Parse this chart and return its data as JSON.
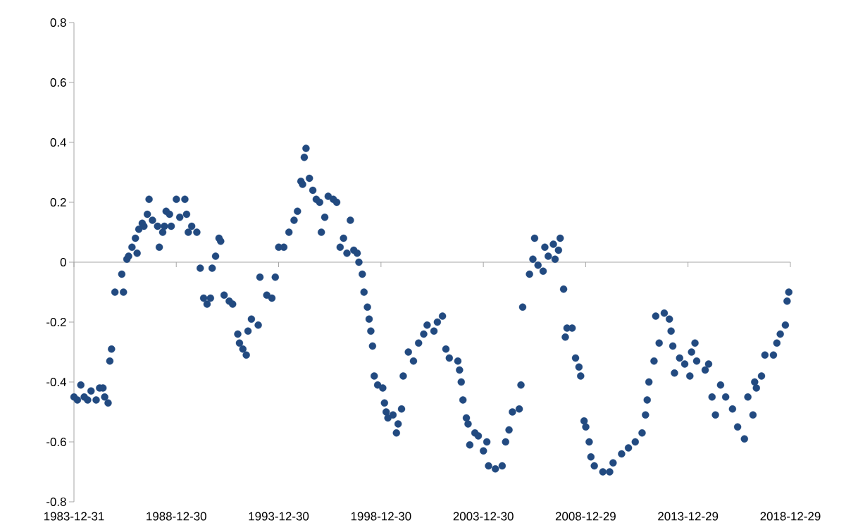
{
  "chart_data": {
    "type": "scatter",
    "color": "#224a80",
    "marker": "circle",
    "x": [
      "1984-01",
      "1984-03",
      "1984-05",
      "1984-07",
      "1984-09",
      "1984-11",
      "1985-02",
      "1985-04",
      "1985-06",
      "1985-07",
      "1985-09",
      "1985-10",
      "1985-11",
      "1986-01",
      "1986-05",
      "1986-06",
      "1986-08",
      "1986-09",
      "1986-11",
      "1987-01",
      "1987-02",
      "1987-03",
      "1987-05",
      "1987-06",
      "1987-08",
      "1987-09",
      "1987-11",
      "1988-02",
      "1988-03",
      "1988-05",
      "1988-06",
      "1988-07",
      "1988-09",
      "1988-10",
      "1989-01",
      "1989-03",
      "1989-06",
      "1989-07",
      "1989-08",
      "1989-10",
      "1990-01",
      "1990-03",
      "1990-05",
      "1990-07",
      "1990-09",
      "1990-10",
      "1990-12",
      "1991-02",
      "1991-03",
      "1991-05",
      "1991-08",
      "1991-10",
      "1992-01",
      "1992-02",
      "1992-04",
      "1992-06",
      "1992-07",
      "1992-09",
      "1993-01",
      "1993-02",
      "1993-06",
      "1993-09",
      "1993-11",
      "1994-01",
      "1994-04",
      "1994-07",
      "1994-10",
      "1994-12",
      "1995-02",
      "1995-03",
      "1995-04",
      "1995-05",
      "1995-07",
      "1995-09",
      "1995-11",
      "1996-01",
      "1996-02",
      "1996-04",
      "1996-06",
      "1996-09",
      "1996-11",
      "1997-01",
      "1997-03",
      "1997-05",
      "1997-07",
      "1997-09",
      "1997-11",
      "1997-12",
      "1998-02",
      "1998-03",
      "1998-05",
      "1998-06",
      "1998-07",
      "1998-08",
      "1998-09",
      "1998-11",
      "1999-02",
      "1999-03",
      "1999-04",
      "1999-05",
      "1999-08",
      "1999-10",
      "1999-11",
      "2000-01",
      "2000-02",
      "2000-05",
      "2000-08",
      "2000-11",
      "2001-02",
      "2001-04",
      "2001-08",
      "2001-10",
      "2002-01",
      "2002-03",
      "2002-05",
      "2002-10",
      "2002-11",
      "2002-12",
      "2003-01",
      "2003-03",
      "2003-04",
      "2003-05",
      "2003-08",
      "2003-10",
      "2004-01",
      "2004-03",
      "2004-04",
      "2004-08",
      "2004-12",
      "2005-02",
      "2005-04",
      "2005-06",
      "2005-10",
      "2005-11",
      "2005-12",
      "2006-04",
      "2006-06",
      "2006-07",
      "2006-09",
      "2006-12",
      "2007-01",
      "2007-03",
      "2007-06",
      "2007-07",
      "2007-09",
      "2007-10",
      "2007-12",
      "2008-01",
      "2008-02",
      "2008-05",
      "2008-07",
      "2008-09",
      "2008-10",
      "2008-12",
      "2009-01",
      "2009-03",
      "2009-04",
      "2009-06",
      "2009-11",
      "2010-03",
      "2010-05",
      "2010-10",
      "2011-02",
      "2011-06",
      "2011-10",
      "2011-12",
      "2012-01",
      "2012-02",
      "2012-05",
      "2012-06",
      "2012-08",
      "2012-11",
      "2013-02",
      "2013-03",
      "2013-04",
      "2013-05",
      "2013-08",
      "2013-11",
      "2014-02",
      "2014-03",
      "2014-05",
      "2014-06",
      "2014-11",
      "2015-01",
      "2015-03",
      "2015-05",
      "2015-08",
      "2015-11",
      "2016-03",
      "2016-06",
      "2016-10",
      "2016-12",
      "2017-03",
      "2017-04",
      "2017-05",
      "2017-08",
      "2017-10",
      "2018-03",
      "2018-05",
      "2018-07",
      "2018-10",
      "2018-11",
      "2018-12"
    ],
    "values": [
      -0.45,
      -0.46,
      -0.41,
      -0.45,
      -0.46,
      -0.43,
      -0.46,
      -0.42,
      -0.42,
      -0.45,
      -0.47,
      -0.33,
      -0.29,
      -0.1,
      -0.04,
      -0.1,
      0.01,
      0.02,
      0.05,
      0.08,
      0.03,
      0.11,
      0.13,
      0.12,
      0.16,
      0.21,
      0.14,
      0.12,
      0.05,
      0.1,
      0.12,
      0.17,
      0.16,
      0.12,
      0.21,
      0.15,
      0.21,
      0.16,
      0.1,
      0.12,
      0.1,
      -0.02,
      -0.12,
      -0.14,
      -0.12,
      -0.02,
      0.02,
      0.08,
      0.07,
      -0.11,
      -0.13,
      -0.14,
      -0.24,
      -0.27,
      -0.29,
      -0.31,
      -0.23,
      -0.19,
      -0.21,
      -0.05,
      -0.11,
      -0.12,
      -0.05,
      0.05,
      0.05,
      0.1,
      0.14,
      0.17,
      0.27,
      0.26,
      0.35,
      0.38,
      0.28,
      0.24,
      0.21,
      0.2,
      0.1,
      0.15,
      0.22,
      0.21,
      0.2,
      0.05,
      0.08,
      0.03,
      0.14,
      0.04,
      0.03,
      0.0,
      -0.04,
      -0.1,
      -0.15,
      -0.19,
      -0.23,
      -0.28,
      -0.38,
      -0.41,
      -0.42,
      -0.47,
      -0.5,
      -0.52,
      -0.51,
      -0.57,
      -0.54,
      -0.49,
      -0.38,
      -0.3,
      -0.33,
      -0.27,
      -0.24,
      -0.21,
      -0.23,
      -0.2,
      -0.18,
      -0.29,
      -0.32,
      -0.33,
      -0.36,
      -0.4,
      -0.46,
      -0.52,
      -0.54,
      -0.61,
      -0.57,
      -0.58,
      -0.63,
      -0.6,
      -0.68,
      -0.69,
      -0.68,
      -0.6,
      -0.56,
      -0.5,
      -0.49,
      -0.41,
      -0.15,
      -0.04,
      0.01,
      0.08,
      -0.01,
      -0.03,
      0.05,
      0.02,
      0.06,
      0.01,
      0.04,
      0.08,
      -0.09,
      -0.25,
      -0.22,
      -0.22,
      -0.32,
      -0.35,
      -0.38,
      -0.53,
      -0.55,
      -0.6,
      -0.65,
      -0.68,
      -0.7,
      -0.7,
      -0.67,
      -0.64,
      -0.62,
      -0.6,
      -0.57,
      -0.51,
      -0.46,
      -0.4,
      -0.33,
      -0.18,
      -0.27,
      -0.17,
      -0.19,
      -0.23,
      -0.28,
      -0.37,
      -0.32,
      -0.34,
      -0.38,
      -0.3,
      -0.27,
      -0.33,
      -0.36,
      -0.34,
      -0.45,
      -0.51,
      -0.41,
      -0.45,
      -0.49,
      -0.55,
      -0.59,
      -0.45,
      -0.51,
      -0.4,
      -0.42,
      -0.38,
      -0.31,
      -0.31,
      -0.27,
      -0.24,
      -0.21,
      -0.13,
      -0.1
    ],
    "xlim": [
      "1983-12-31",
      "2018-12-29"
    ],
    "xticks": [
      "1983-12-31",
      "1988-12-30",
      "1993-12-30",
      "1998-12-30",
      "2003-12-30",
      "2008-12-29",
      "2013-12-29",
      "2018-12-29"
    ],
    "ylim": [
      -0.8,
      0.8
    ],
    "yticks": [
      -0.8,
      -0.6,
      -0.4,
      -0.2,
      0,
      0.2,
      0.4,
      0.6,
      0.8
    ]
  }
}
